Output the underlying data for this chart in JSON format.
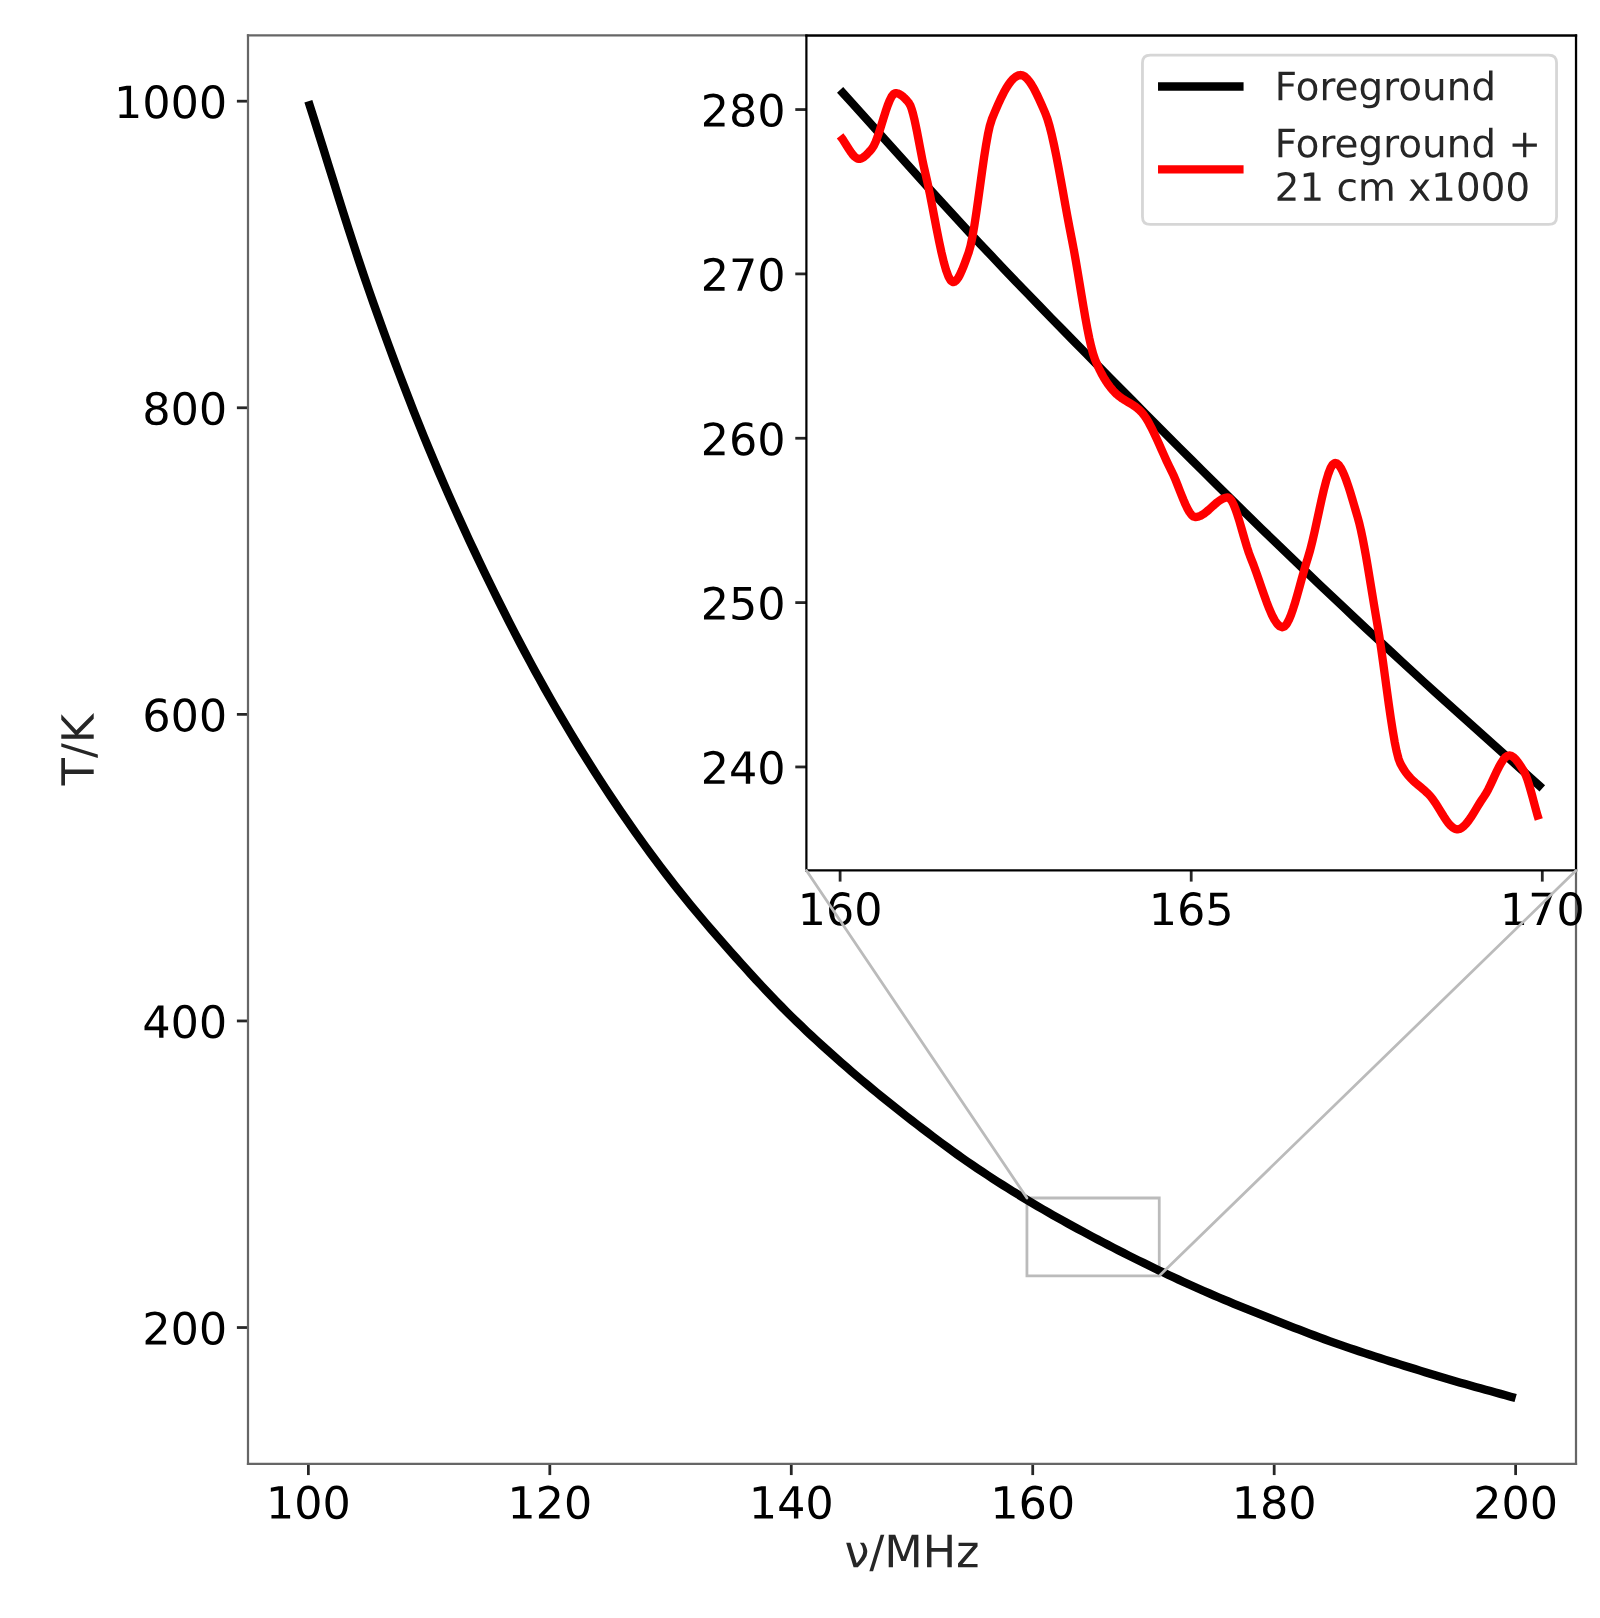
{
  "chart_data": [
    {
      "type": "line",
      "xlabel": "ν/MHz",
      "ylabel": "T/K",
      "xlim": [
        95,
        205
      ],
      "ylim": [
        111,
        1043
      ],
      "xticks": [
        100,
        120,
        140,
        160,
        180,
        200
      ],
      "yticks": [
        200,
        400,
        600,
        800,
        1000
      ],
      "grid": false,
      "legend": false,
      "series": [
        {
          "color": "#000000",
          "x": [
            100,
            105,
            110,
            115,
            120,
            125,
            130,
            135,
            140,
            145,
            150,
            155,
            160,
            165,
            170,
            175,
            180,
            185,
            190,
            195,
            200
          ],
          "values": [
            1000,
            877,
            773,
            686,
            611,
            547,
            492,
            445,
            403,
            367,
            335,
            306,
            281,
            259,
            239,
            221,
            205,
            190,
            177,
            165,
            154
          ]
        }
      ]
    },
    {
      "type": "line",
      "xlim": [
        159.52,
        170.48
      ],
      "ylim": [
        233.7,
        284.5
      ],
      "xticks": [
        160,
        165,
        170
      ],
      "yticks": [
        240,
        250,
        260,
        270,
        280
      ],
      "grid": false,
      "legend": "top right",
      "series": [
        {
          "name": "Foreground",
          "color": "#000000",
          "x": [
            160,
            162,
            164,
            166,
            168,
            170
          ],
          "values": [
            281.2,
            271.8,
            263.0,
            254.5,
            246.4,
            238.7
          ]
        },
        {
          "name": "Foreground +\n21 cm x1000",
          "color": "#ff0000",
          "x": [
            160.0,
            160.27,
            160.45,
            160.79,
            160.98,
            161.21,
            161.61,
            161.83,
            162.16,
            162.57,
            162.92,
            163.3,
            163.63,
            163.91,
            164.29,
            164.72,
            165.06,
            165.52,
            165.85,
            166.3,
            166.66,
            167.05,
            167.37,
            167.65,
            167.98,
            168.41,
            168.79,
            169.17,
            169.53,
            169.73,
            169.95
          ],
          "values": [
            278.4,
            277.0,
            277.6,
            281.0,
            280.4,
            276.2,
            269.5,
            271.3,
            279.4,
            282.1,
            279.8,
            272.1,
            264.8,
            262.8,
            261.6,
            258.0,
            255.2,
            256.4,
            252.7,
            248.5,
            252.7,
            258.5,
            255.2,
            248.7,
            240.2,
            238.2,
            236.2,
            238.2,
            240.7,
            239.8,
            236.8
          ]
        }
      ]
    }
  ]
}
